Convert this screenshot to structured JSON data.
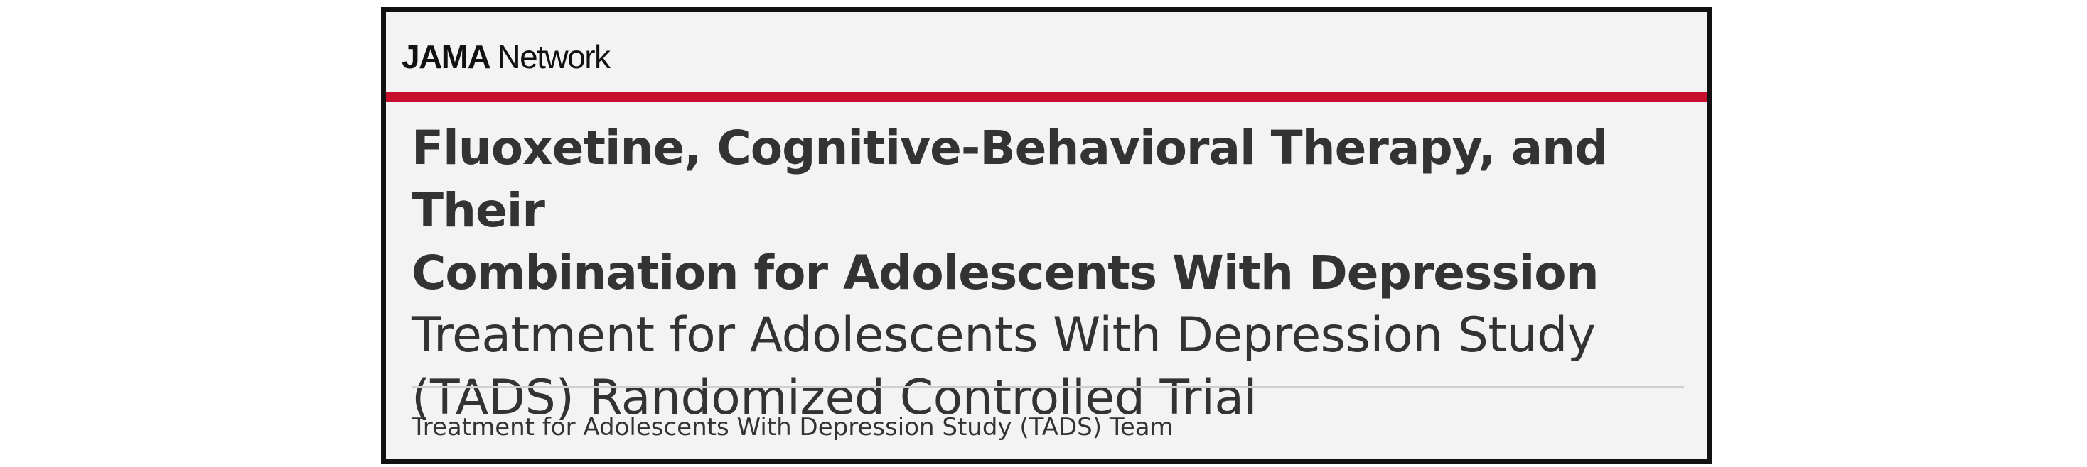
{
  "brand": {
    "strong": "JAMA",
    "light": "Network"
  },
  "article": {
    "title_line1": "Fluoxetine, Cognitive-Behavioral Therapy, and Their",
    "title_line2": "Combination for Adolescents With Depression",
    "subtitle_line1": "Treatment for Adolescents With Depression Study",
    "subtitle_line2": "(TADS) Randomized Controlled Trial",
    "authors": "Treatment for Adolescents With Depression Study (TADS) Team"
  },
  "colors": {
    "accent_red": "#c8102e",
    "text": "#333333",
    "background": "#f3f3f3",
    "border": "#111111"
  }
}
